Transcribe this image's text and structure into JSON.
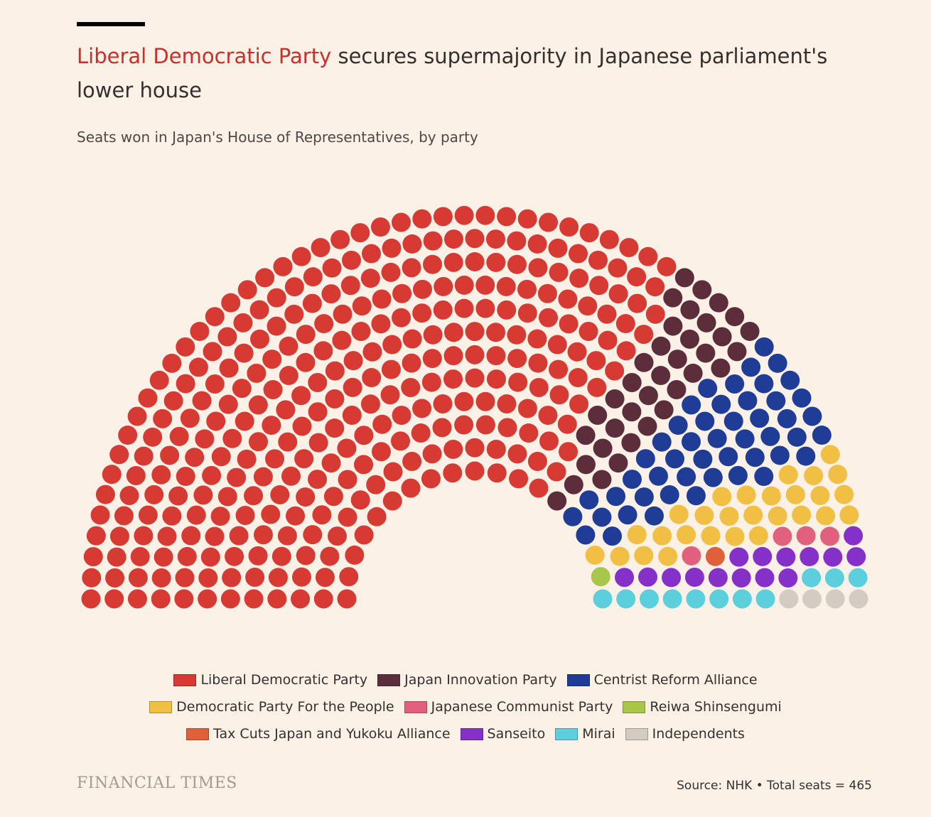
{
  "title_highlight": "Liberal Democratic Party",
  "title": "secures supermajority in Japanese parliament's lower house",
  "subtitle": "Seats won in Japan's House of Representatives, by party",
  "logo": "FINANCIAL TIMES",
  "source": "Source: NHK • Total seats = 465",
  "chart_data": {
    "type": "parliament",
    "series": [
      {
        "name": "Liberal Democratic Party",
        "color": "#d63a33",
        "seats": 316
      },
      {
        "name": "Japan Innovation Party",
        "color": "#5c2e3c",
        "seats": 36
      },
      {
        "name": "Centrist Reform Alliance",
        "color": "#1f3d96",
        "seats": 49
      },
      {
        "name": "Democratic Party For the People",
        "color": "#f2bf45",
        "seats": 28
      },
      {
        "name": "Japanese Communist Party",
        "color": "#e0607e",
        "seats": 4
      },
      {
        "name": "Reiwa Shinsengumi",
        "color": "#a8c64a",
        "seats": 1
      },
      {
        "name": "Tax Cuts Japan and Yukoku Alliance",
        "color": "#e0603a",
        "seats": 1
      },
      {
        "name": "Sanseito",
        "color": "#8530c9",
        "seats": 15
      },
      {
        "name": "Mirai",
        "color": "#5ccfdd",
        "seats": 11
      },
      {
        "name": "Independents",
        "color": "#d4ccc2",
        "seats": 4
      }
    ]
  }
}
